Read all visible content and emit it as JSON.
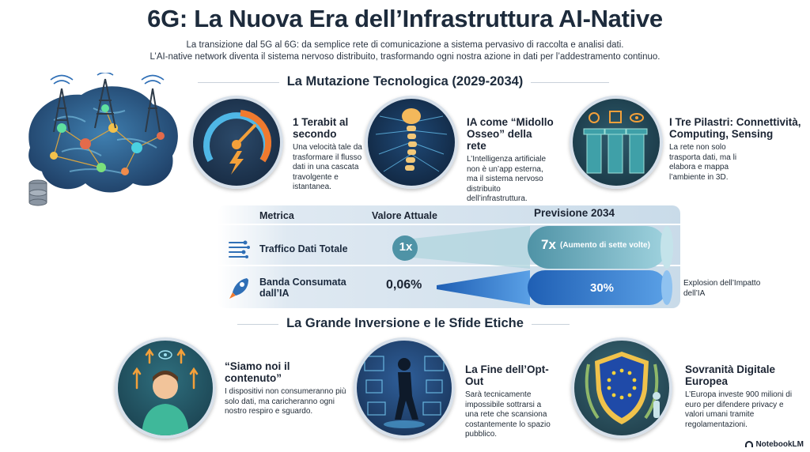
{
  "header": {
    "title": "6G: La Nuova Era dell’Infrastruttura AI-Native",
    "subtitle_line1": "La transizione dal 5G al 6G: da semplice rete di comunicazione a sistema pervasivo di raccolta e analisi dati.",
    "subtitle_line2": "L’AI-native network diventa il sistema nervoso distribuito, trasformando ogni nostra azione in dati per l’addestramento continuo."
  },
  "section1": {
    "heading": "La Mutazione Tecnologica (2029-2034)",
    "features": [
      {
        "title": "1 Terabit al secondo",
        "desc": "Una velocità tale da trasformare il flusso dati in una cascata travolgente e istantanea.",
        "icon": "speedometer-icon"
      },
      {
        "title": "IA come “Midollo Osseo” della rete",
        "desc": "L’Intelligenza artificiale non è un’app esterna, ma il sistema nervoso distribuito dell’infrastruttura.",
        "icon": "spine-icon"
      },
      {
        "title": "I Tre Pilastri: Connettività, Computing, Sensing",
        "desc": "La rete non solo trasporta dati, ma li elabora e mappa l’ambiente in 3D.",
        "icon": "pillars-icon"
      }
    ]
  },
  "metrics": {
    "col_metric": "Metrica",
    "col_current": "Valore Attuale",
    "col_forecast": "Previsione 2034",
    "rows": [
      {
        "label": "Traffico Dati Totale",
        "current": "1x",
        "forecast": "7x",
        "forecast_note": "(Aumento di sette volte)",
        "icon": "data-stream-icon"
      },
      {
        "label": "Banda Consumata dall’IA",
        "current": "0,06%",
        "forecast": "30%",
        "side_note": "Explosion dell’Impatto dell’IA",
        "icon": "rocket-icon"
      }
    ]
  },
  "section2": {
    "heading": "La Grande Inversione e le Sfide Etiche",
    "features": [
      {
        "title": "“Siamo noi il contenuto”",
        "desc": "I dispositivi non consumeranno più solo dati, ma caricheranno ogni nostro respiro e sguardo.",
        "icon": "person-data-icon"
      },
      {
        "title": "La Fine dell’Opt-Out",
        "desc": "Sarà tecnicamente impossibile sottrarsi a una rete che scansiona costantemente lo spazio pubblico.",
        "icon": "walking-scan-icon"
      },
      {
        "title": "Sovranità Digitale Europea",
        "desc": "L’Europa investe 900 milioni di euro per difendere privacy e valori umani tramite regolamentazioni.",
        "icon": "eu-shield-icon"
      }
    ]
  },
  "footer": {
    "brand": "NotebookLM"
  },
  "colors": {
    "accent": "#2f6fb6",
    "teal": "#3a8ea0",
    "dark": "#1d2b3c"
  }
}
